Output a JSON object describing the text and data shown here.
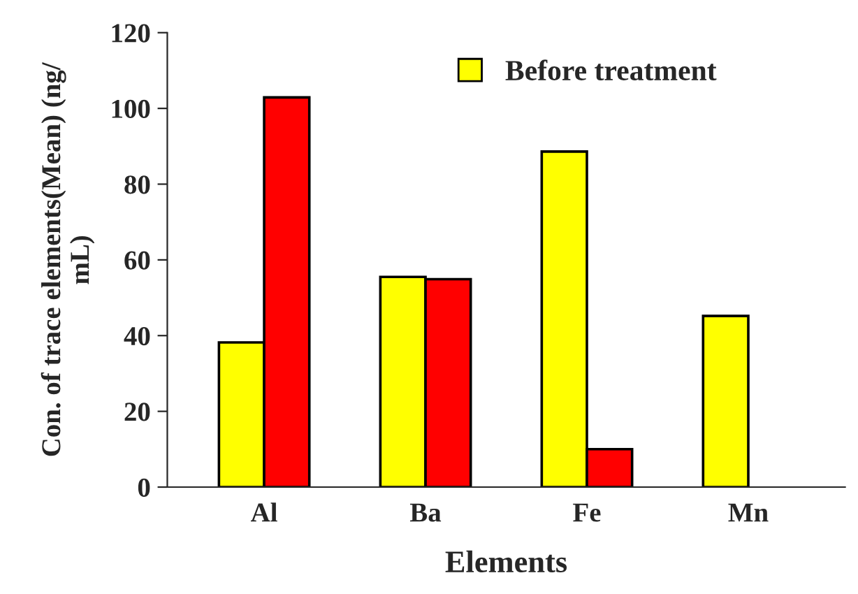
{
  "chart_data": {
    "type": "bar",
    "xlabel": "Elements",
    "ylabel": "Con. of trace elements(Mean) (ng/\nmL)",
    "categories": [
      "Al",
      "Ba",
      "Fe",
      "Mn"
    ],
    "series": [
      {
        "name": "Before treatment",
        "color": "#ffff00",
        "values": [
          38.2,
          55.5,
          88.6,
          45.2
        ]
      },
      {
        "color": "#ff0000",
        "values": [
          102.9,
          54.9,
          10.0,
          null
        ]
      }
    ],
    "ylim": [
      0,
      120
    ],
    "yticks": [
      0,
      20,
      40,
      60,
      80,
      100,
      120
    ],
    "grid": false,
    "legend": "top"
  }
}
